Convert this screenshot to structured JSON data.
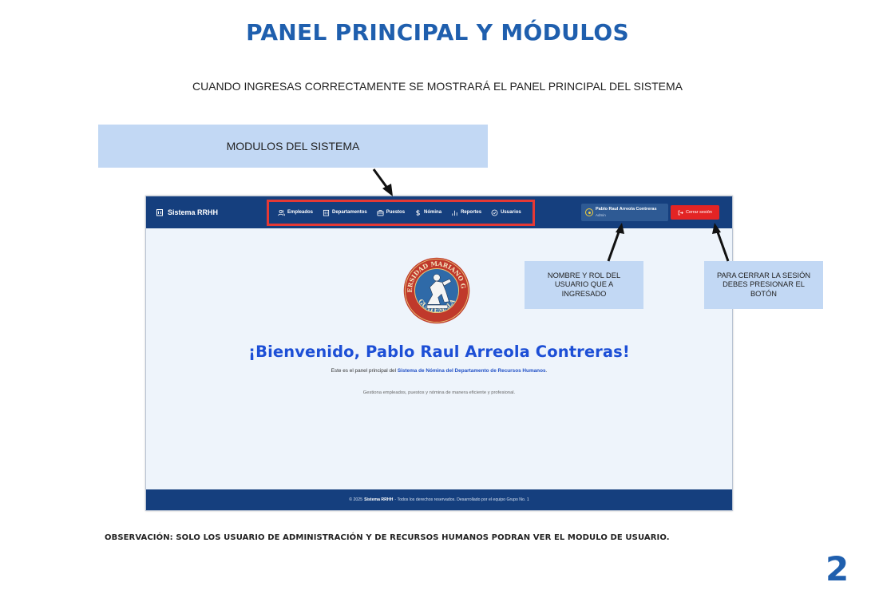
{
  "document": {
    "title": "PANEL PRINCIPAL Y MÓDULOS",
    "subtitle": "CUANDO INGRESAS CORRECTAMENTE SE MOSTRARÁ EL PANEL PRINCIPAL  DEL SISTEMA",
    "observation": "OBSERVACIÓN:   SOLO LOS USUARIO DE ADMINISTRACIÓN Y DE RECURSOS HUMANOS PODRAN VER EL MODULO DE USUARIO.",
    "page_number": "2"
  },
  "callouts": {
    "modules": "MODULOS DEL SISTEMA",
    "user": "NOMBRE Y ROL DEL USUARIO QUE A INGRESADO",
    "logout": "PARA CERRAR LA SESIÓN DEBES PRESIONAR EL BOTÓN"
  },
  "app": {
    "brand": "Sistema RRHH",
    "brand_icon": "building-icon",
    "nav": [
      {
        "label": "Empleados",
        "icon": "users-icon"
      },
      {
        "label": "Departamentos",
        "icon": "building-icon"
      },
      {
        "label": "Puestos",
        "icon": "briefcase-icon"
      },
      {
        "label": "Nómina",
        "icon": "dollar-icon"
      },
      {
        "label": "Reportes",
        "icon": "bar-chart-icon"
      },
      {
        "label": "Usuarios",
        "icon": "shield-check-icon"
      }
    ],
    "user": {
      "name": "Pablo Raul Arreola Contreras",
      "role": "Admin"
    },
    "logout_label": "Cerrar sesión",
    "welcome": "¡Bienvenido, Pablo Raul Arreola Contreras!",
    "intro_prefix": "Este es el panel principal del ",
    "intro_highlight": "Sistema de Nómina del Departamento de Recursos Humanos",
    "intro_suffix": ".",
    "description": "Gestiona empleados, puestos y nómina de manera eficiente y profesional.",
    "footer": {
      "prefix": "© 2025",
      "brand": "Sistema RRHH",
      "suffix": "- Todos los derechos reservados. Desarrollado por el equipo Grupo No. 1"
    },
    "seal": {
      "top_text": "UNIVERSIDAD MARIANO GALVEZ",
      "bottom_text": "GUATEMALA"
    }
  },
  "colors": {
    "navbar": "#153f7e",
    "accent_title": "#1f5fae",
    "welcome": "#1d4fd6",
    "logout": "#e32424",
    "highlight": "#e53935",
    "callout": "#c2d8f4"
  }
}
